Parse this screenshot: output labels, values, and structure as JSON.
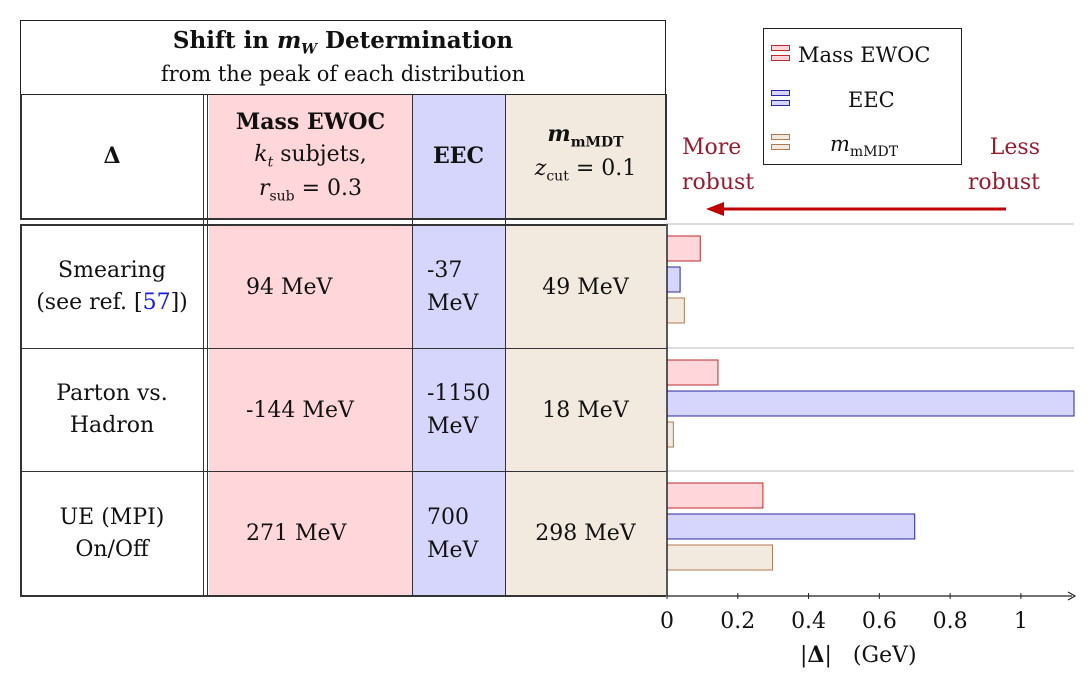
{
  "title": {
    "line1_prefix": "Shift in ",
    "line1_var": "m",
    "line1_sub": "W",
    "line1_suffix": " Determination",
    "line2": "from the peak of each distribution"
  },
  "header": {
    "delta": "Δ",
    "mass_ewoc_title": "Mass EWOC",
    "mass_ewoc_line2_var": "k",
    "mass_ewoc_line2_sub": "t",
    "mass_ewoc_line2_rest": " subjets,",
    "mass_ewoc_line3_var": "r",
    "mass_ewoc_line3_sub": "sub",
    "mass_ewoc_line3_rest": " = 0.3",
    "eec_title": "EEC",
    "mmdt_var": "m",
    "mmdt_sub": "mMDT",
    "mmdt_line2_var": "z",
    "mmdt_line2_sub": "cut",
    "mmdt_line2_rest": " = 0.1"
  },
  "rows": [
    {
      "label_line1": "Smearing",
      "label_line2_prefix": "(see ref. [",
      "label_line2_ref": "57",
      "label_line2_suffix": "])",
      "mass_ewoc": "94 MeV",
      "eec_line1": "-37",
      "eec_line2": "MeV",
      "mmdt": "49 MeV"
    },
    {
      "label_line1": "Parton vs.",
      "label_line2_prefix": "Hadron",
      "label_line2_ref": "",
      "label_line2_suffix": "",
      "mass_ewoc": "-144 MeV",
      "eec_line1": "-1150",
      "eec_line2": "MeV",
      "mmdt": "18 MeV"
    },
    {
      "label_line1": "UE (MPI)",
      "label_line2_prefix": "On/Off",
      "label_line2_ref": "",
      "label_line2_suffix": "",
      "mass_ewoc": "271 MeV",
      "eec_line1": "700",
      "eec_line2": "MeV",
      "mmdt": "298 MeV"
    }
  ],
  "annotations": {
    "more_line1": "More",
    "more_line2": "robust",
    "less_line1": "Less",
    "less_line2": "robust"
  },
  "legend": {
    "mass_ewoc": "Mass EWOC",
    "eec": "EEC",
    "mmdt_var": "m",
    "mmdt_sub": "mMDT"
  },
  "colors": {
    "mass_ewoc_fill": "#ffd6d9",
    "mass_ewoc_edge": "#c0282e",
    "eec_fill": "#d6d6fc",
    "eec_edge": "#2828a8",
    "mmdt_fill": "#f3eadf",
    "mmdt_edge": "#b07a52",
    "arrow": "#c00000",
    "annotation_text": "#9a1a30",
    "ref_link": "#1a1aee"
  },
  "chart_data": {
    "type": "bar",
    "orientation": "horizontal",
    "categories": [
      "Smearing",
      "Parton vs. Hadron",
      "UE (MPI) On/Off"
    ],
    "series": [
      {
        "name": "Mass EWOC",
        "values": [
          0.094,
          0.144,
          0.271
        ]
      },
      {
        "name": "EEC",
        "values": [
          0.037,
          1.15,
          0.7
        ]
      },
      {
        "name": "m_mMDT",
        "values": [
          0.049,
          0.018,
          0.298
        ]
      }
    ],
    "xlabel_abs_var": "Δ",
    "xlabel_unit": "(GeV)",
    "xlim": [
      0,
      1.15
    ],
    "xticks": [
      0,
      0.2,
      0.4,
      0.6,
      0.8,
      1
    ],
    "tick_labels": [
      "0",
      "0.2",
      "0.4",
      "0.6",
      "0.8",
      "1"
    ],
    "grid": "horizontal row separators",
    "legend_position": "top-right"
  }
}
